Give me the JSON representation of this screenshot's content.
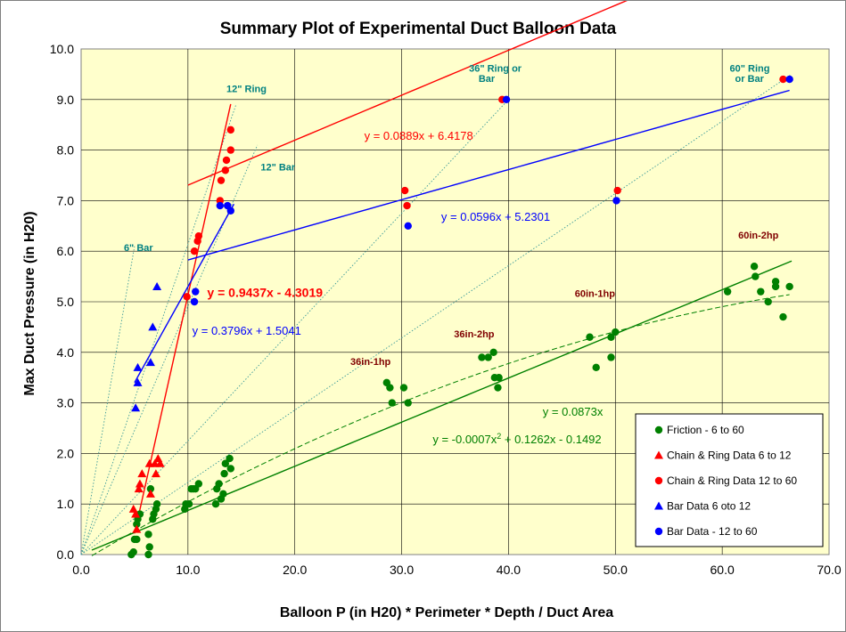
{
  "chart_data": {
    "type": "scatter",
    "title": "Summary Plot of Experimental Duct Balloon Data",
    "xlabel": "Balloon P (in H20) * Perimeter * Depth / Duct Area",
    "ylabel": "Max Duct Pressure (in H20)",
    "xlim": [
      0,
      70
    ],
    "ylim": [
      0,
      10
    ],
    "x_ticks": [
      "0.0",
      "10.0",
      "20.0",
      "30.0",
      "40.0",
      "50.0",
      "60.0",
      "70.0"
    ],
    "y_ticks": [
      "0.0",
      "1.0",
      "2.0",
      "3.0",
      "4.0",
      "5.0",
      "6.0",
      "7.0",
      "8.0",
      "9.0",
      "10.0"
    ],
    "plot_background": "#ffffcc",
    "grid_major": true,
    "legend_position": "bottom-right",
    "series": [
      {
        "name": "Friction - 6 to 60",
        "marker": "circle",
        "color": "#008000",
        "points": [
          [
            4.7,
            0.0
          ],
          [
            4.9,
            0.05
          ],
          [
            5.0,
            0.3
          ],
          [
            5.2,
            0.3
          ],
          [
            5.2,
            0.6
          ],
          [
            5.3,
            0.7
          ],
          [
            5.5,
            0.8
          ],
          [
            6.3,
            0.0
          ],
          [
            6.3,
            0.4
          ],
          [
            6.4,
            0.15
          ],
          [
            6.5,
            1.3
          ],
          [
            6.7,
            0.7
          ],
          [
            6.8,
            0.8
          ],
          [
            7.0,
            0.9
          ],
          [
            7.1,
            1.0
          ],
          [
            9.7,
            0.9
          ],
          [
            9.8,
            1.0
          ],
          [
            10.1,
            1.0
          ],
          [
            10.3,
            1.3
          ],
          [
            10.5,
            1.3
          ],
          [
            10.7,
            1.3
          ],
          [
            11.0,
            1.4
          ],
          [
            12.6,
            1.0
          ],
          [
            12.7,
            1.3
          ],
          [
            12.9,
            1.4
          ],
          [
            13.1,
            1.1
          ],
          [
            13.3,
            1.2
          ],
          [
            13.4,
            1.6
          ],
          [
            13.5,
            1.8
          ],
          [
            13.9,
            1.9
          ],
          [
            14.0,
            1.7
          ],
          [
            28.6,
            3.4
          ],
          [
            28.9,
            3.3
          ],
          [
            29.1,
            3.0
          ],
          [
            30.2,
            3.3
          ],
          [
            30.6,
            3.0
          ],
          [
            37.5,
            3.9
          ],
          [
            38.1,
            3.9
          ],
          [
            38.6,
            4.0
          ],
          [
            38.7,
            3.5
          ],
          [
            39.0,
            3.3
          ],
          [
            39.1,
            3.5
          ],
          [
            47.6,
            4.3
          ],
          [
            48.2,
            3.7
          ],
          [
            49.6,
            3.9
          ],
          [
            49.6,
            4.3
          ],
          [
            50.0,
            4.4
          ],
          [
            60.5,
            5.2
          ],
          [
            63.0,
            5.7
          ],
          [
            63.1,
            5.5
          ],
          [
            63.6,
            5.2
          ],
          [
            64.3,
            5.0
          ],
          [
            65.0,
            5.4
          ],
          [
            65.0,
            5.3
          ],
          [
            65.7,
            4.7
          ],
          [
            66.3,
            5.3
          ]
        ]
      },
      {
        "name": "Chain & Ring Data 6 to 12",
        "marker": "triangle",
        "color": "#ff0000",
        "points": [
          [
            4.9,
            0.9
          ],
          [
            5.1,
            0.8
          ],
          [
            5.2,
            0.5
          ],
          [
            5.4,
            1.3
          ],
          [
            5.5,
            1.4
          ],
          [
            5.7,
            1.6
          ],
          [
            6.4,
            1.8
          ],
          [
            6.5,
            1.2
          ],
          [
            6.9,
            1.8
          ],
          [
            7.0,
            1.6
          ],
          [
            7.2,
            1.9
          ],
          [
            7.4,
            1.8
          ]
        ]
      },
      {
        "name": "Chain & Ring Data 12 to 60",
        "marker": "circle",
        "color": "#ff0000",
        "points": [
          [
            9.9,
            5.1
          ],
          [
            10.6,
            6.0
          ],
          [
            10.9,
            6.2
          ],
          [
            11.0,
            6.3
          ],
          [
            13.0,
            7.0
          ],
          [
            13.1,
            7.4
          ],
          [
            13.5,
            7.6
          ],
          [
            13.6,
            7.8
          ],
          [
            14.0,
            8.0
          ],
          [
            14.0,
            8.4
          ],
          [
            30.3,
            7.2
          ],
          [
            30.5,
            6.9
          ],
          [
            39.4,
            9.0
          ],
          [
            50.2,
            7.2
          ],
          [
            65.7,
            9.4
          ]
        ]
      },
      {
        "name": "Bar Data 6 oto 12",
        "marker": "triangle",
        "color": "#0000ff",
        "points": [
          [
            5.1,
            2.9
          ],
          [
            5.3,
            3.4
          ],
          [
            5.3,
            3.7
          ],
          [
            6.5,
            3.8
          ],
          [
            6.7,
            4.5
          ],
          [
            7.1,
            5.3
          ]
        ]
      },
      {
        "name": "Bar Data - 12 to 60",
        "marker": "circle",
        "color": "#0000ff",
        "points": [
          [
            10.6,
            5.0
          ],
          [
            10.7,
            5.2
          ],
          [
            13.0,
            6.9
          ],
          [
            13.7,
            6.9
          ],
          [
            14.0,
            6.8
          ],
          [
            30.6,
            6.5
          ],
          [
            39.8,
            9.0
          ],
          [
            50.1,
            7.0
          ],
          [
            66.3,
            9.4
          ]
        ]
      }
    ],
    "trendlines": [
      {
        "label": "y = 0.9437x - 4.3019",
        "color": "#ff0000",
        "style": "solid",
        "slope": 0.9437,
        "intercept": -4.3019,
        "x_range": [
          5,
          14
        ]
      },
      {
        "label": "y = 0.3796x + 1.5041",
        "color": "#0000ff",
        "style": "solid",
        "slope": 0.3796,
        "intercept": 1.5041,
        "x_range": [
          5,
          14.3
        ]
      },
      {
        "label": "y = 0.0889x + 6.4178",
        "color": "#ff0000",
        "style": "solid",
        "slope": 0.0889,
        "intercept": 6.4178,
        "x_range": [
          10,
          66
        ]
      },
      {
        "label": "y = 0.0596x + 5.2301",
        "color": "#0000ff",
        "style": "solid",
        "slope": 0.0596,
        "intercept": 5.2301,
        "x_range": [
          10,
          66.3
        ]
      },
      {
        "label": "y = 0.0873x",
        "color": "#008000",
        "style": "solid",
        "slope": 0.0873,
        "intercept": 0,
        "x_range": [
          1,
          66.5
        ]
      },
      {
        "label": "y = -0.0007x2 + 0.1262x - 0.1492",
        "color": "#008000",
        "style": "dashed",
        "a": -0.0007,
        "b": 0.1262,
        "c": -0.1492,
        "x_range": [
          1,
          66.3
        ]
      }
    ],
    "reference_lines": [
      {
        "x_end": 5.0,
        "y_end": 6.1
      },
      {
        "x_end": 14.5,
        "y_end": 8.9
      },
      {
        "x_end": 16.5,
        "y_end": 8.1
      },
      {
        "x_end": 40.0,
        "y_end": 9.0
      },
      {
        "x_end": 66.5,
        "y_end": 9.5
      }
    ],
    "annotations": [
      {
        "text": "12\" Ring",
        "x": 13.6,
        "y": 9.15,
        "color": "#008080"
      },
      {
        "text": "12\" Bar",
        "x": 16.8,
        "y": 7.6,
        "color": "#008080"
      },
      {
        "text": "6\" Bar",
        "x": 4.0,
        "y": 6.0,
        "color": "#008080"
      },
      {
        "text": "36\" Ring or",
        "x": 36.3,
        "y": 9.55,
        "color": "#008080"
      },
      {
        "text": "Bar",
        "x": 37.2,
        "y": 9.35,
        "color": "#008080"
      },
      {
        "text": "60\" Ring",
        "x": 60.7,
        "y": 9.55,
        "color": "#008080"
      },
      {
        "text": "or Bar",
        "x": 61.2,
        "y": 9.35,
        "color": "#008080"
      },
      {
        "text": "36in-1hp",
        "x": 25.2,
        "y": 3.75,
        "color": "#800000"
      },
      {
        "text": "36in-2hp",
        "x": 34.9,
        "y": 4.3,
        "color": "#800000"
      },
      {
        "text": "60in-1hp",
        "x": 46.2,
        "y": 5.1,
        "color": "#800000"
      },
      {
        "text": "60in-2hp",
        "x": 61.5,
        "y": 6.25,
        "color": "#800000"
      }
    ],
    "equation_labels": [
      {
        "text": "y = 0.0889x + 6.4178",
        "x": 26.5,
        "y": 8.2,
        "color": "#ff0000",
        "bold": false
      },
      {
        "text": "y = 0.0596x + 5.2301",
        "x": 33.7,
        "y": 6.6,
        "color": "#0000ff",
        "bold": false
      },
      {
        "text": "y = 0.9437x - 4.3019",
        "x": 11.8,
        "y": 5.1,
        "color": "#ff0000",
        "bold": true
      },
      {
        "text": "y = 0.3796x + 1.5041",
        "x": 10.4,
        "y": 4.35,
        "color": "#0000ff",
        "bold": false
      },
      {
        "text": "y = 0.0873x",
        "x": 43.2,
        "y": 2.75,
        "color": "#008000",
        "bold": false
      },
      {
        "text": "y = -0.0007x",
        "x": 32.9,
        "y": 2.2,
        "color": "#008000",
        "bold": false,
        "sup": "2",
        "rest": " + 0.1262x - 0.1492"
      }
    ]
  }
}
